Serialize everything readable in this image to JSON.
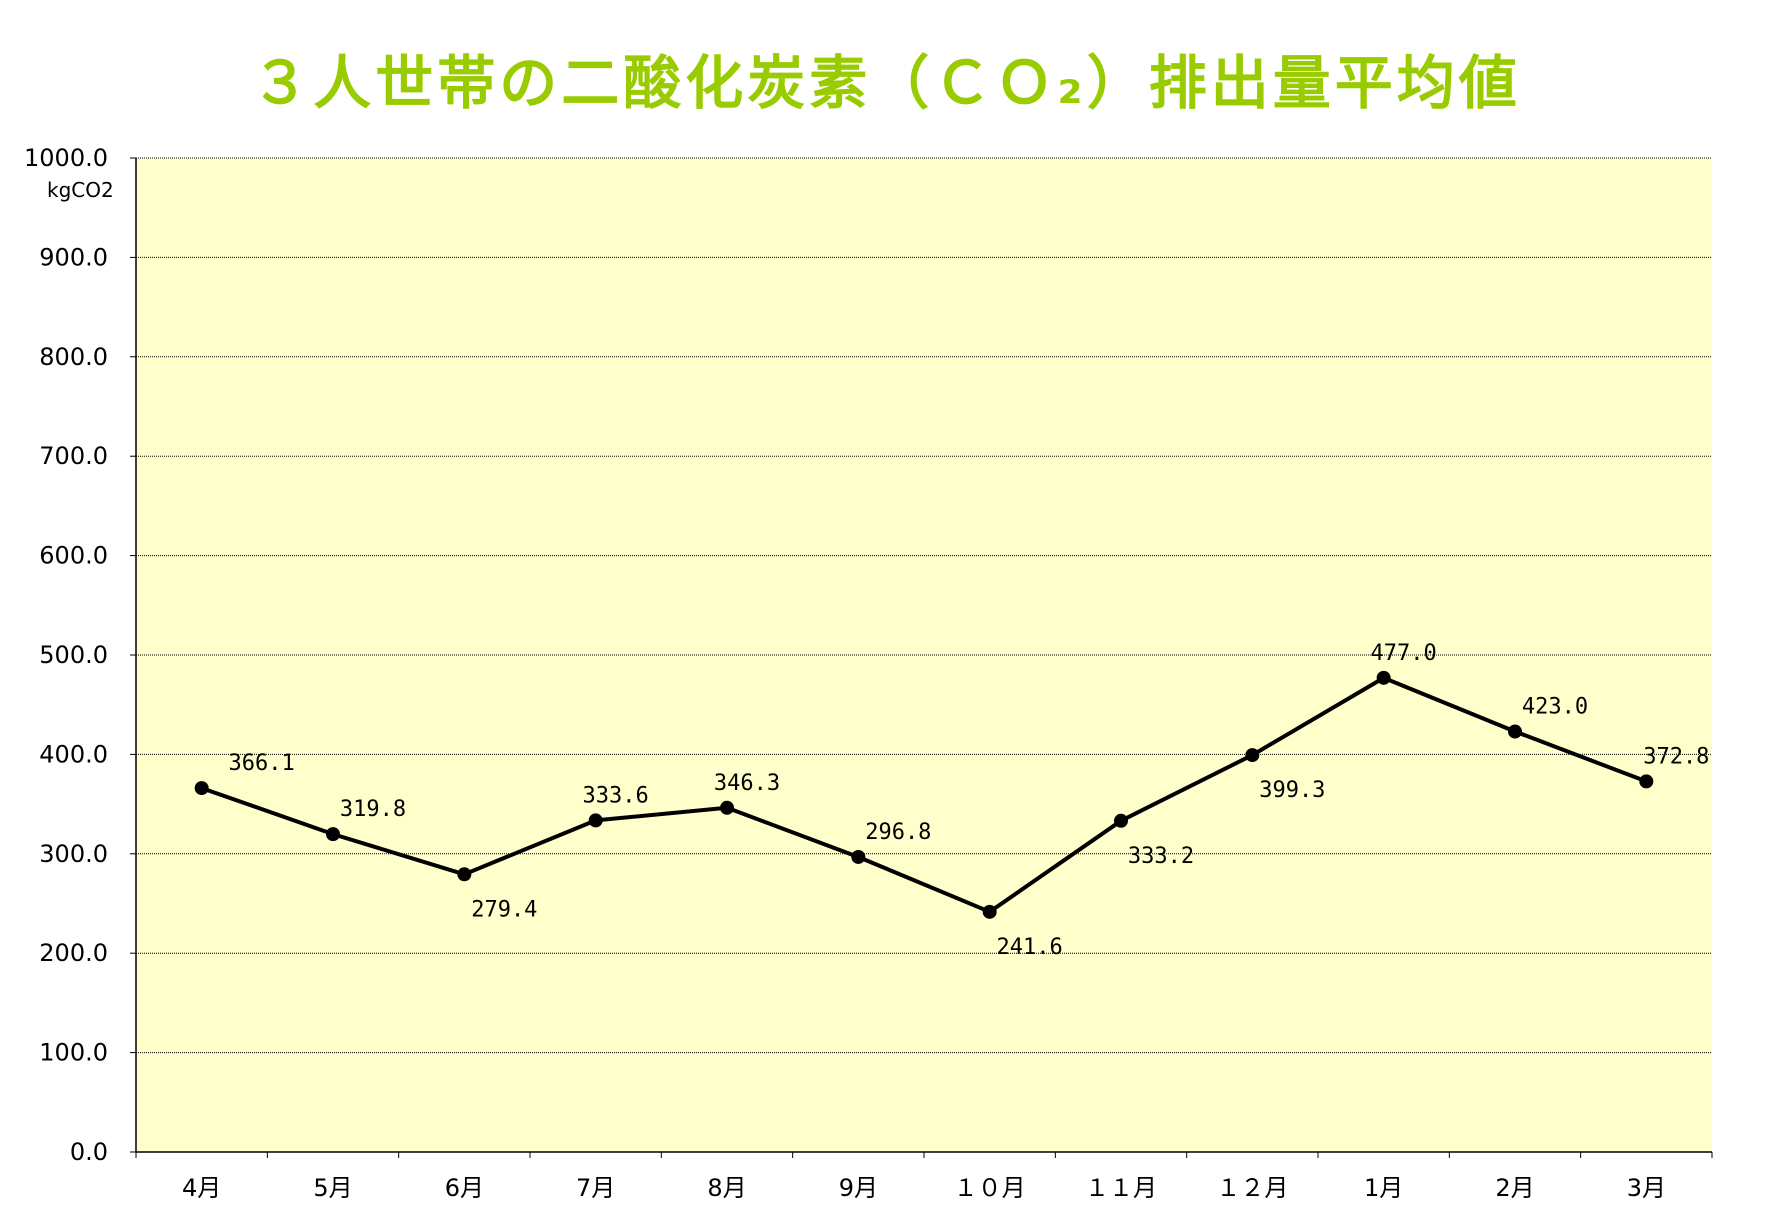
{
  "chart_data": {
    "type": "line",
    "title": "３人世帯の二酸化炭素（ＣＯ₂）排出量平均値",
    "ylabel": "kgCO2",
    "xlabel": "",
    "categories": [
      "4月",
      "5月",
      "6月",
      "7月",
      "8月",
      "9月",
      "１０月",
      "１１月",
      "１２月",
      "1月",
      "2月",
      "3月"
    ],
    "series": [
      {
        "values": [
          366.1,
          319.8,
          279.4,
          333.6,
          346.3,
          296.8,
          241.6,
          333.2,
          399.3,
          477.0,
          423.0,
          372.8
        ]
      }
    ],
    "data_labels": [
      "366.1",
      "319.8",
      "279.4",
      "333.6",
      "346.3",
      "296.8",
      "241.6",
      "333.2",
      "399.3",
      "477.0",
      "423.0",
      "372.8"
    ],
    "ylim": [
      0,
      1000
    ],
    "yticks": [
      "0.0",
      "100.0",
      "200.0",
      "300.0",
      "400.0",
      "500.0",
      "600.0",
      "700.0",
      "800.0",
      "900.0",
      "1000.0"
    ],
    "grid": true,
    "legend": "none",
    "colors": {
      "title": "#99cc00",
      "plot_background": "#ffffcc",
      "line": "#000000",
      "marker": "#000000",
      "gridline": "#000000"
    }
  }
}
